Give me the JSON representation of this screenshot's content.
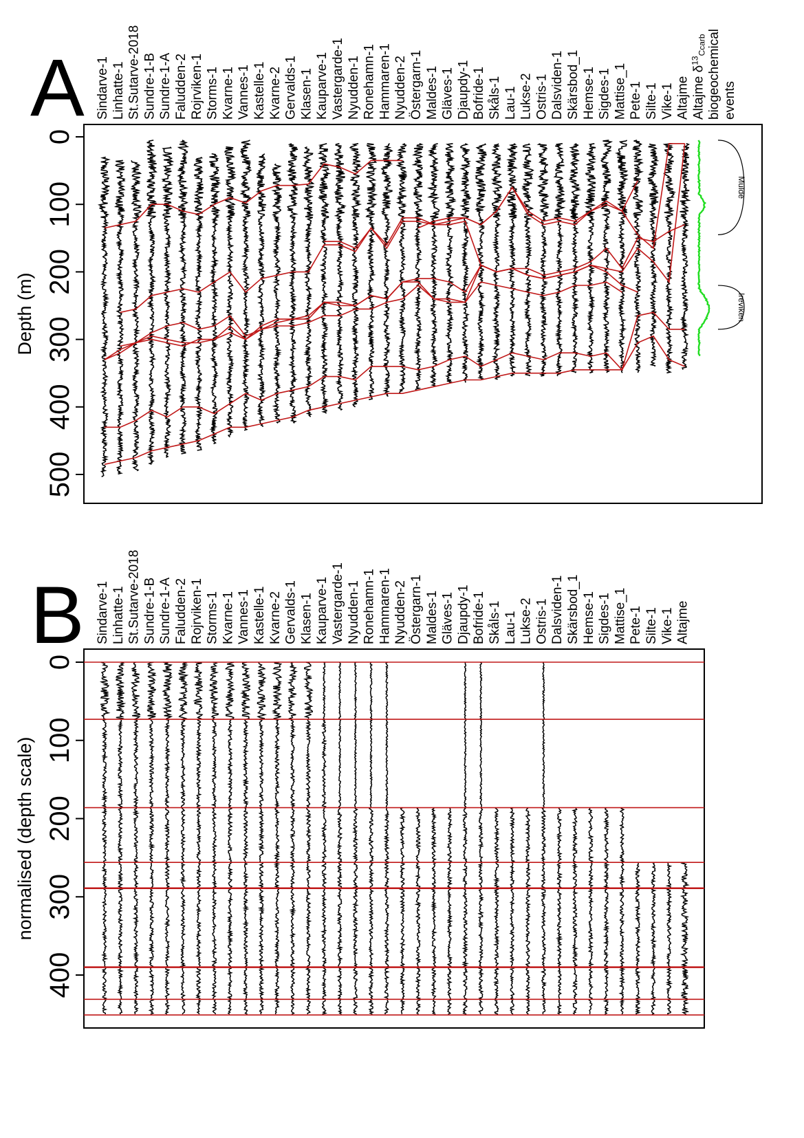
{
  "chart_data": [
    {
      "type": "line",
      "panel": "A",
      "ylabel": "Depth (m)",
      "yticks": [
        0,
        100,
        200,
        300,
        400,
        500
      ],
      "ylim": [
        0,
        540
      ],
      "wells": [
        "Sindarve-1",
        "Linhatte-1",
        "St.Sutarve-2018",
        "Sundre-1-B",
        "Sundre-1-A",
        "Faludden-2",
        "Rojrviken-1",
        "Storms-1",
        "Kvarne-1",
        "Vannes-1",
        "Kastelle-1",
        "Kvarne-2",
        "Gervalds-1",
        "Klasen-1",
        "Kauparve-1",
        "Vastergarde-1",
        "Nyudden-1",
        "Ronehamn-1",
        "Hammaren-1",
        "Nyudden-2",
        "Östergarn-1",
        "Maldes-1",
        "Gläves-1",
        "Djaupdy-1",
        "Bofride-1",
        "Skåls-1",
        "Lau-1",
        "Lukse-2",
        "Ostris-1",
        "Dalsviden-1",
        "Skärsbod_1",
        "Hemse-1",
        "Sigdes-1",
        "Mattise_1",
        "Pete-1",
        "Silte-1",
        "Vike-1",
        "Altajme"
      ],
      "extra_column_label": "Altajme δ¹³Ccarb",
      "extra_column_label_prefix": "Altajme δ",
      "extra_column_label_sup": "13",
      "extra_column_label_sub": "Ccarb",
      "events_column_label": "biogeochemical events",
      "events_column_label_line1": "biogeochemical",
      "events_column_label_line2": "events",
      "events": [
        {
          "name": "Mulde",
          "top": 5,
          "base": 145
        },
        {
          "name": "Ireviken",
          "top": 220,
          "base": 285
        }
      ],
      "well_top_depth": [
        30,
        35,
        35,
        5,
        15,
        5,
        30,
        25,
        15,
        5,
        25,
        40,
        10,
        15,
        10,
        10,
        10,
        10,
        10,
        10,
        10,
        10,
        10,
        10,
        10,
        10,
        10,
        10,
        10,
        10,
        10,
        10,
        5,
        5,
        5,
        10,
        10,
        10
      ],
      "well_base_depth": [
        505,
        500,
        495,
        485,
        475,
        470,
        465,
        455,
        445,
        435,
        430,
        425,
        425,
        415,
        410,
        405,
        400,
        390,
        385,
        380,
        375,
        370,
        365,
        365,
        360,
        360,
        355,
        355,
        355,
        355,
        350,
        350,
        350,
        350,
        350,
        340,
        350,
        345
      ],
      "correlation_surfaces_depth": [
        [
          135,
          130,
          125,
          100,
          100,
          110,
          115,
          100,
          90,
          98,
          80,
          72,
          72,
          70,
          40,
          45,
          55,
          35,
          35,
          35,
          null,
          null,
          null,
          null,
          null,
          null,
          null,
          null,
          null,
          null,
          null,
          null,
          null,
          null,
          null,
          null,
          null,
          null
        ],
        [
          null,
          null,
          null,
          null,
          null,
          null,
          null,
          null,
          null,
          null,
          null,
          null,
          null,
          null,
          null,
          null,
          null,
          null,
          null,
          null,
          135,
          125,
          120,
          120,
          130,
          110,
          75,
          110,
          125,
          120,
          125,
          110,
          100,
          110,
          65,
          null,
          null,
          null
        ],
        [
          null,
          null,
          null,
          null,
          null,
          null,
          null,
          null,
          null,
          null,
          null,
          null,
          null,
          null,
          155,
          155,
          165,
          135,
          160,
          120,
          120,
          130,
          125,
          120,
          130,
          110,
          75,
          115,
          130,
          125,
          130,
          110,
          95,
          110,
          145,
          165,
          10,
          10
        ],
        [
          null,
          260,
          255,
          235,
          230,
          225,
          230,
          215,
          200,
          230,
          210,
          205,
          200,
          200,
          160,
          160,
          170,
          135,
          165,
          125,
          125,
          130,
          130,
          125,
          190,
          200,
          195,
          195,
          205,
          200,
          195,
          185,
          165,
          195,
          150,
          155,
          140,
          130
        ],
        [
          null,
          310,
          305,
          290,
          280,
          275,
          285,
          280,
          265,
          295,
          285,
          275,
          270,
          265,
          245,
          250,
          250,
          235,
          240,
          215,
          210,
          210,
          215,
          230,
          190,
          200,
          195,
          205,
          210,
          205,
          200,
          190,
          195,
          200,
          165,
          185,
          215,
          10
        ],
        [
          330,
          315,
          305,
          295,
          300,
          305,
          305,
          300,
          280,
          300,
          280,
          270,
          270,
          270,
          245,
          245,
          250,
          235,
          240,
          215,
          215,
          240,
          240,
          245,
          190,
          200,
          195,
          205,
          210,
          205,
          200,
          190,
          200,
          220,
          230,
          null,
          null,
          null
        ],
        [
          330,
          320,
          305,
          300,
          305,
          310,
          300,
          300,
          290,
          300,
          285,
          280,
          280,
          275,
          265,
          265,
          255,
          255,
          245,
          240,
          220,
          240,
          245,
          245,
          215,
          220,
          225,
          230,
          235,
          230,
          220,
          220,
          215,
          230,
          null,
          null,
          null,
          null
        ],
        [
          430,
          430,
          420,
          405,
          415,
          400,
          400,
          410,
          395,
          380,
          390,
          380,
          375,
          370,
          355,
          355,
          360,
          340,
          340,
          340,
          345,
          340,
          330,
          325,
          340,
          330,
          320,
          325,
          330,
          320,
          320,
          325,
          320,
          345,
          305,
          295,
          330,
          340
        ],
        [
          485,
          480,
          475,
          465,
          460,
          455,
          450,
          440,
          430,
          430,
          425,
          420,
          415,
          405,
          400,
          395,
          390,
          385,
          380,
          380,
          375,
          370,
          365,
          360,
          360,
          355,
          350,
          350,
          350,
          350,
          345,
          345,
          345,
          345,
          265,
          260,
          285,
          285
        ]
      ],
      "d13C_depth_range": [
        5,
        325
      ]
    },
    {
      "type": "line",
      "panel": "B",
      "ylabel": "normalised (depth scale)",
      "yticks": [
        0,
        100,
        200,
        300,
        400
      ],
      "ylim": [
        0,
        465
      ],
      "wells": [
        "Sindarve-1",
        "Linhatte-1",
        "St.Sutarve-2018",
        "Sundre-1-B",
        "Sundre-1-A",
        "Faludden-2",
        "Rojrviken-1",
        "Storms-1",
        "Kvarne-1",
        "Vannes-1",
        "Kastelle-1",
        "Kvarne-2",
        "Gervalds-1",
        "Klasen-1",
        "Kauparve-1",
        "Vastergarde-1",
        "Nyudden-1",
        "Ronehamn-1",
        "Hammaren-1",
        "Nyudden-2",
        "Östergarn-1",
        "Maldes-1",
        "Gläves-1",
        "Djaupdy-1",
        "Bofride-1",
        "Skåls-1",
        "Lau-1",
        "Lukse-2",
        "Ostris-1",
        "Dalsviden-1",
        "Skärsbod_1",
        "Hemse-1",
        "Sigdes-1",
        "Mattise_1",
        "Pete-1",
        "Silte-1",
        "Vike-1",
        "Altajme"
      ],
      "horizontal_surfaces": [
        0,
        73,
        186,
        256,
        289,
        390,
        431,
        451
      ],
      "well_top": [
        0,
        0,
        0,
        0,
        0,
        0,
        0,
        0,
        0,
        0,
        0,
        0,
        0,
        0,
        0,
        0,
        0,
        0,
        0,
        186,
        186,
        186,
        186,
        0,
        0,
        186,
        186,
        186,
        0,
        186,
        186,
        186,
        186,
        186,
        256,
        256,
        256,
        256
      ],
      "well_bottom": [
        451,
        451,
        451,
        451,
        451,
        451,
        451,
        451,
        451,
        451,
        451,
        451,
        451,
        451,
        451,
        451,
        451,
        451,
        451,
        451,
        451,
        451,
        451,
        451,
        451,
        451,
        451,
        451,
        451,
        451,
        451,
        451,
        451,
        451,
        451,
        451,
        451,
        451
      ],
      "gap_wells_top_only": {
        "Djaupdy-1": [
          0,
          186
        ],
        "Bofride-1": [
          0,
          186
        ],
        "Ostris-1": [
          0,
          186
        ]
      }
    }
  ],
  "panelA": {
    "letter": "A"
  },
  "panelB": {
    "letter": "B"
  }
}
